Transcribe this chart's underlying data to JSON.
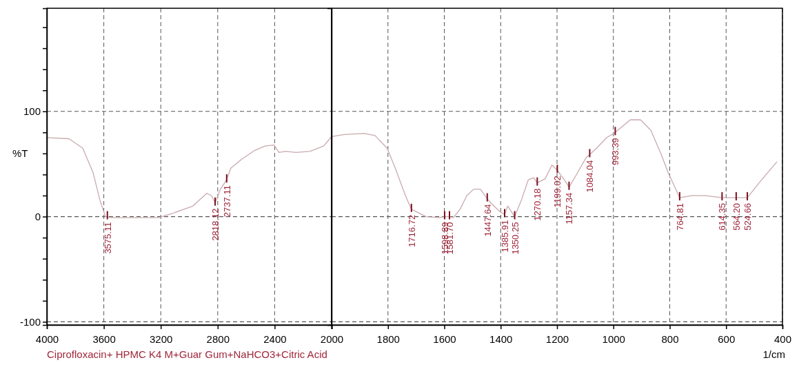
{
  "chart_data": [
    {
      "type": "line",
      "ylabel": "%T",
      "x": [
        4000,
        3845,
        3748,
        3676,
        3628,
        3589,
        3575.11,
        3555,
        3362,
        3216,
        3120,
        2975,
        2878,
        2844,
        2818.12,
        2781,
        2737.11,
        2708,
        2636,
        2539,
        2467,
        2404,
        2370,
        2322,
        2249,
        2152,
        2056,
        2007,
        2000
      ],
      "series": [
        {
          "color": "#c9a9ad",
          "values": [
            75,
            74,
            65,
            42,
            16,
            0,
            0,
            -1,
            -1,
            -1,
            3,
            10,
            22,
            20,
            13,
            26,
            35,
            46,
            54,
            63,
            67,
            68,
            61,
            62,
            61,
            62,
            67,
            75,
            76
          ]
        }
      ],
      "xlim": [
        4000,
        2000
      ],
      "xticks": [
        4000,
        3600,
        3200,
        2800,
        2400,
        2000
      ],
      "ylim": [
        -103,
        198
      ],
      "yticks": [
        {
          "value": 180,
          "label": null
        },
        {
          "value": 160,
          "label": null
        },
        {
          "value": 140,
          "label": null
        },
        {
          "value": 120,
          "label": null
        },
        100,
        {
          "value": 80,
          "label": null
        },
        {
          "value": 60,
          "label": null
        },
        {
          "value": 40,
          "label": null
        },
        {
          "value": 20,
          "label": null
        },
        0,
        {
          "value": -20,
          "label": null
        },
        {
          "value": -40,
          "label": null
        },
        {
          "value": -60,
          "label": null
        },
        {
          "value": -80,
          "label": null
        },
        -100
      ],
      "grid": true,
      "line_style": "solid",
      "annotations": [
        {
          "text": "3575.11",
          "x": 3575.11,
          "y": 0
        },
        {
          "text": "2818.12",
          "x": 2818.12,
          "y": 13
        },
        {
          "text": "2737.11",
          "x": 2737.11,
          "y": 35
        },
        "Ciprofloxacin+ HPMC K4 M+Guar Gum+NaHCO3+Citric Acid"
      ]
    },
    {
      "type": "line",
      "xlabel": "1/cm",
      "x": [
        2000,
        1955,
        1883,
        1846,
        1803,
        1774,
        1738,
        1716.72,
        1665,
        1617,
        1598.89,
        1581.7,
        1568,
        1544,
        1520,
        1496,
        1472,
        1447.64,
        1435,
        1404,
        1385.91,
        1375,
        1350.25,
        1326,
        1302,
        1283,
        1270.18,
        1242,
        1218,
        1199.02,
        1169,
        1157.34,
        1133,
        1097,
        1084.04,
        1060,
        1024,
        993.39,
        940,
        904,
        867,
        830,
        806,
        764.81,
        722,
        674,
        614.35,
        564.2,
        524.66,
        480,
        420
      ],
      "series": [
        {
          "color": "#c9a9ad",
          "values": [
            76,
            78,
            79,
            77,
            65,
            46,
            20,
            7,
            0,
            -1,
            0,
            0,
            -1,
            7,
            20,
            26,
            26,
            17,
            13,
            5,
            2,
            10,
            0,
            16,
            35,
            37,
            32,
            36,
            49,
            44,
            33,
            28,
            39,
            56,
            59,
            65,
            75,
            80,
            92,
            92,
            82,
            59,
            42,
            18,
            20,
            20,
            18,
            18,
            18,
            33,
            52
          ]
        }
      ],
      "xlim": [
        2000,
        400
      ],
      "xticks": [
        {
          "value": 2000,
          "label": null
        },
        1800,
        1600,
        1400,
        1200,
        1000,
        800,
        600,
        400
      ],
      "ylim": [
        -103,
        198
      ],
      "yticks": [
        100,
        0,
        -100
      ],
      "grid": true,
      "line_style": "solid",
      "tick_labels": "x",
      "annotations": [
        {
          "text": "1716.72",
          "x": 1716.72,
          "y": 7
        },
        {
          "text": "1598.89",
          "x": 1598.89,
          "y": 0
        },
        {
          "text": "1581.70",
          "x": 1581.7,
          "y": 0
        },
        {
          "text": "1447.64",
          "x": 1447.64,
          "y": 17
        },
        {
          "text": "1385.91",
          "x": 1385.91,
          "y": 2
        },
        {
          "text": "1350.25",
          "x": 1350.25,
          "y": 0
        },
        {
          "text": "1270.18",
          "x": 1270.18,
          "y": 32
        },
        {
          "text": "1199.02",
          "x": 1199.02,
          "y": 44
        },
        {
          "text": "1157.34",
          "x": 1157.34,
          "y": 28
        },
        {
          "text": "1084.04",
          "x": 1084.04,
          "y": 59
        },
        {
          "text": "993.39",
          "x": 993.39,
          "y": 80
        },
        {
          "text": "764.81",
          "x": 764.81,
          "y": 18
        },
        {
          "text": "614.35",
          "x": 614.35,
          "y": 18
        },
        {
          "text": "564.20",
          "x": 564.2,
          "y": 18
        },
        {
          "text": "524.66",
          "x": 524.66,
          "y": 18
        }
      ]
    }
  ]
}
